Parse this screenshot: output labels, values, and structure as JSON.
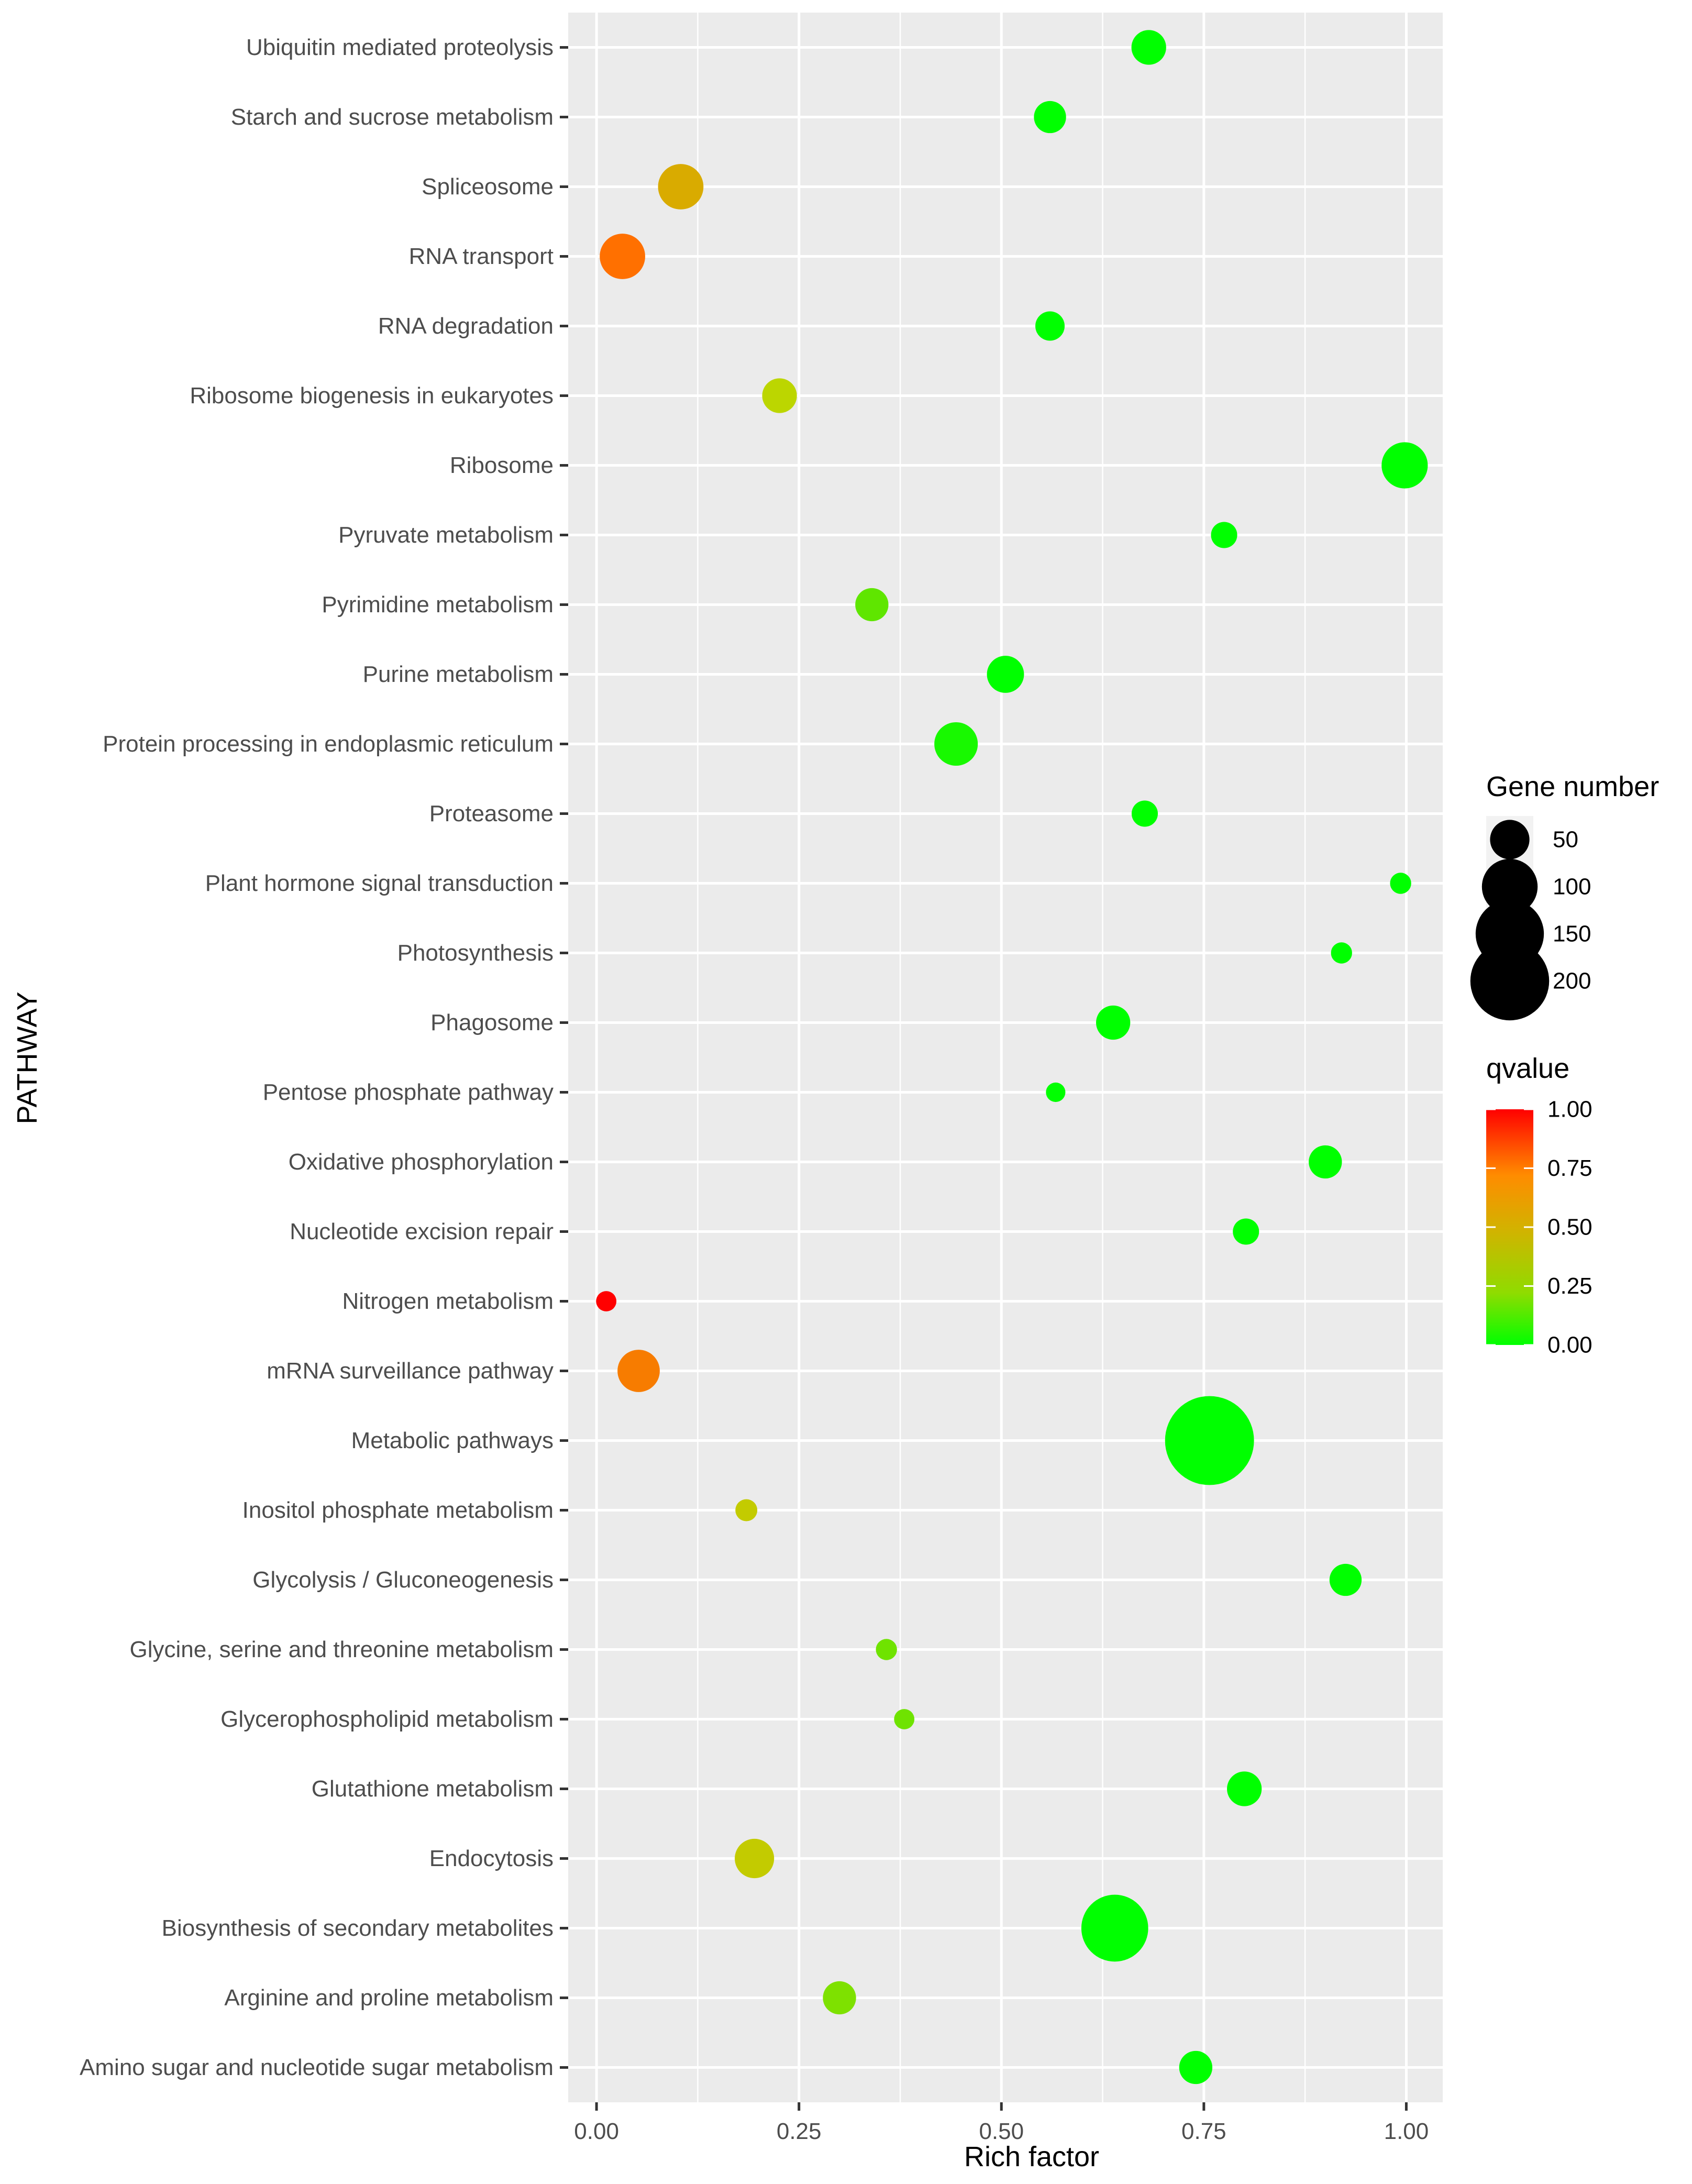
{
  "chart_data": {
    "type": "scatter",
    "subtype": "bubble",
    "xlabel": "Rich factor",
    "ylabel": "PATHWAY",
    "xlim": [
      -0.035,
      1.045
    ],
    "xticks": [
      0.0,
      0.25,
      0.5,
      0.75,
      1.0
    ],
    "xtick_labels": [
      "0.00",
      "0.25",
      "0.50",
      "0.75",
      "1.00"
    ],
    "grid": true,
    "pathways": [
      {
        "name": "Amino sugar and nucleotide sugar metabolism",
        "rich_factor": 0.74,
        "qvalue": 0.0,
        "gene_number": 32
      },
      {
        "name": "Arginine and proline metabolism",
        "rich_factor": 0.3,
        "qvalue": 0.18,
        "gene_number": 32
      },
      {
        "name": "Biosynthesis of secondary metabolites",
        "rich_factor": 0.64,
        "qvalue": 0.0,
        "gene_number": 130
      },
      {
        "name": "Endocytosis",
        "rich_factor": 0.195,
        "qvalue": 0.35,
        "gene_number": 45
      },
      {
        "name": "Glutathione metabolism",
        "rich_factor": 0.8,
        "qvalue": 0.0,
        "gene_number": 35
      },
      {
        "name": "Glycerophospholipid metabolism",
        "rich_factor": 0.38,
        "qvalue": 0.15,
        "gene_number": 12
      },
      {
        "name": "Glycine, serine and threonine metabolism",
        "rich_factor": 0.358,
        "qvalue": 0.15,
        "gene_number": 13
      },
      {
        "name": "Glycolysis / Gluconeogenesis",
        "rich_factor": 0.925,
        "qvalue": 0.0,
        "gene_number": 30
      },
      {
        "name": "Inositol phosphate metabolism",
        "rich_factor": 0.185,
        "qvalue": 0.35,
        "gene_number": 14
      },
      {
        "name": "Metabolic pathways",
        "rich_factor": 0.757,
        "qvalue": 0.0,
        "gene_number": 230
      },
      {
        "name": "mRNA surveillance pathway",
        "rich_factor": 0.052,
        "qvalue": 0.7,
        "gene_number": 52
      },
      {
        "name": "Nitrogen metabolism",
        "rich_factor": 0.012,
        "qvalue": 1.0,
        "gene_number": 12
      },
      {
        "name": "Nucleotide excision repair",
        "rich_factor": 0.802,
        "qvalue": 0.0,
        "gene_number": 20
      },
      {
        "name": "Oxidative phosphorylation",
        "rich_factor": 0.9,
        "qvalue": 0.0,
        "gene_number": 32
      },
      {
        "name": "Pentose phosphate pathway",
        "rich_factor": 0.567,
        "qvalue": 0.0,
        "gene_number": 11
      },
      {
        "name": "Phagosome",
        "rich_factor": 0.638,
        "qvalue": 0.0,
        "gene_number": 34
      },
      {
        "name": "Photosynthesis",
        "rich_factor": 0.92,
        "qvalue": 0.0,
        "gene_number": 13
      },
      {
        "name": "Plant hormone signal transduction",
        "rich_factor": 0.993,
        "qvalue": 0.0,
        "gene_number": 13
      },
      {
        "name": "Proteasome",
        "rich_factor": 0.677,
        "qvalue": 0.0,
        "gene_number": 20
      },
      {
        "name": "Protein processing in endoplasmic reticulum",
        "rich_factor": 0.444,
        "qvalue": 0.03,
        "gene_number": 55
      },
      {
        "name": "Purine metabolism",
        "rich_factor": 0.505,
        "qvalue": 0.0,
        "gene_number": 40
      },
      {
        "name": "Pyrimidine metabolism",
        "rich_factor": 0.34,
        "qvalue": 0.12,
        "gene_number": 32
      },
      {
        "name": "Pyruvate metabolism",
        "rich_factor": 0.775,
        "qvalue": 0.0,
        "gene_number": 20
      },
      {
        "name": "Ribosome",
        "rich_factor": 0.998,
        "qvalue": 0.0,
        "gene_number": 62
      },
      {
        "name": "Ribosome biogenesis in eukaryotes",
        "rich_factor": 0.226,
        "qvalue": 0.3,
        "gene_number": 35
      },
      {
        "name": "RNA degradation",
        "rich_factor": 0.56,
        "qvalue": 0.0,
        "gene_number": 25
      },
      {
        "name": "RNA transport",
        "rich_factor": 0.032,
        "qvalue": 0.75,
        "gene_number": 60
      },
      {
        "name": "Spliceosome",
        "rich_factor": 0.104,
        "qvalue": 0.5,
        "gene_number": 60
      },
      {
        "name": "Starch and sucrose metabolism",
        "rich_factor": 0.56,
        "qvalue": 0.0,
        "gene_number": 30
      },
      {
        "name": "Ubiquitin mediated proteolysis",
        "rich_factor": 0.682,
        "qvalue": 0.0,
        "gene_number": 35
      }
    ],
    "size_legend": {
      "title": "Gene number",
      "values": [
        50,
        100,
        150,
        200
      ],
      "labels": [
        "50",
        "100",
        "150",
        "200"
      ]
    },
    "color_legend": {
      "title": "qvalue",
      "ticks": [
        1.0,
        0.75,
        0.5,
        0.25,
        0.0
      ],
      "tick_labels": [
        "1.00",
        "0.75",
        "0.50",
        "0.25",
        "0.00"
      ],
      "colors": {
        "high": "#ff0000",
        "mid": "#ff8c00",
        "low": "#bcd600",
        "zero": "#00ff00"
      }
    },
    "panel_background": "#ebebeb",
    "grid_color": "#ffffff"
  }
}
